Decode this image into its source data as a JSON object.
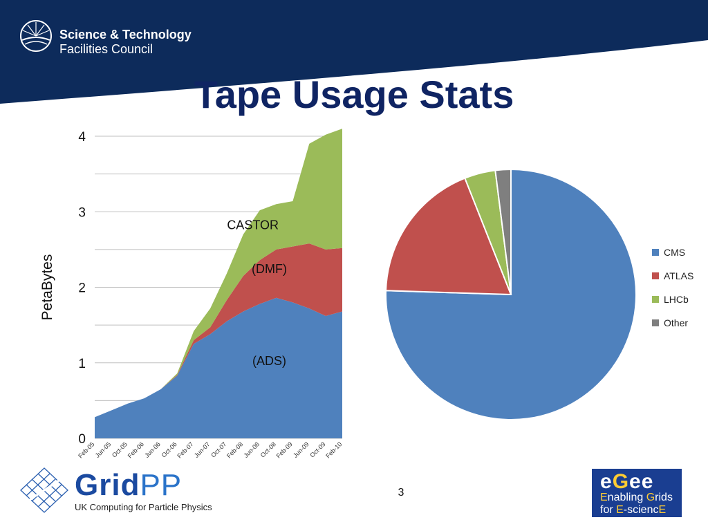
{
  "header": {
    "org_line1": "Science & Technology",
    "org_line2": "Facilities Council",
    "title": "Tape Usage Stats",
    "band_color": "#0d2b5b"
  },
  "chart_data": [
    {
      "type": "area",
      "stacked": true,
      "title": "",
      "xlabel": "",
      "ylabel": "PetaBytes",
      "ylim": [
        0,
        4
      ],
      "yticks": [
        0,
        1,
        2,
        3,
        4
      ],
      "grid": true,
      "categories": [
        "Feb-05",
        "Jun-05",
        "Oct-05",
        "Feb-06",
        "Jun-06",
        "Oct-06",
        "Feb-07",
        "Jun-07",
        "Oct-07",
        "Feb-08",
        "Jun-08",
        "Oct-08",
        "Feb-09",
        "Jun-09",
        "Oct-09",
        "Feb-10"
      ],
      "series": [
        {
          "name": "(ADS)",
          "color": "#4f81bd",
          "values": [
            0.28,
            0.37,
            0.46,
            0.53,
            0.65,
            0.83,
            1.25,
            1.38,
            1.55,
            1.68,
            1.78,
            1.86,
            1.8,
            1.72,
            1.62,
            1.68
          ]
        },
        {
          "name": "(DMF)",
          "color": "#c0504d",
          "values": [
            0.0,
            0.0,
            0.0,
            0.0,
            0.0,
            0.01,
            0.05,
            0.09,
            0.28,
            0.47,
            0.58,
            0.64,
            0.74,
            0.86,
            0.88,
            0.84
          ]
        },
        {
          "name": "CASTOR",
          "color": "#9bbb59",
          "values": [
            0.0,
            0.0,
            0.0,
            0.0,
            0.0,
            0.02,
            0.12,
            0.25,
            0.35,
            0.55,
            0.66,
            0.6,
            0.6,
            1.32,
            1.52,
            1.58
          ]
        }
      ]
    },
    {
      "type": "pie",
      "title": "",
      "legend_position": "right",
      "slices": [
        {
          "label": "CMS",
          "value": 75.5,
          "color": "#4f81bd"
        },
        {
          "label": "ATLAS",
          "value": 18.5,
          "color": "#c0504d"
        },
        {
          "label": "LHCb",
          "value": 4.0,
          "color": "#9bbb59"
        },
        {
          "label": "Other",
          "value": 2.0,
          "color": "#7f7f7f"
        }
      ]
    }
  ],
  "footer": {
    "gridpp_name_a": "Grid",
    "gridpp_name_b": "PP",
    "gridpp_tagline": "UK Computing for Particle Physics",
    "page_number": "3",
    "egee_mark_a": "e",
    "egee_mark_b": "G",
    "egee_mark_c": "ee",
    "egee_line1_a": "E",
    "egee_line1_b": "nabling ",
    "egee_line1_c": "G",
    "egee_line1_d": "rids",
    "egee_line2_a": "for ",
    "egee_line2_b": "E",
    "egee_line2_c": "-scienc",
    "egee_line2_d": "E"
  }
}
